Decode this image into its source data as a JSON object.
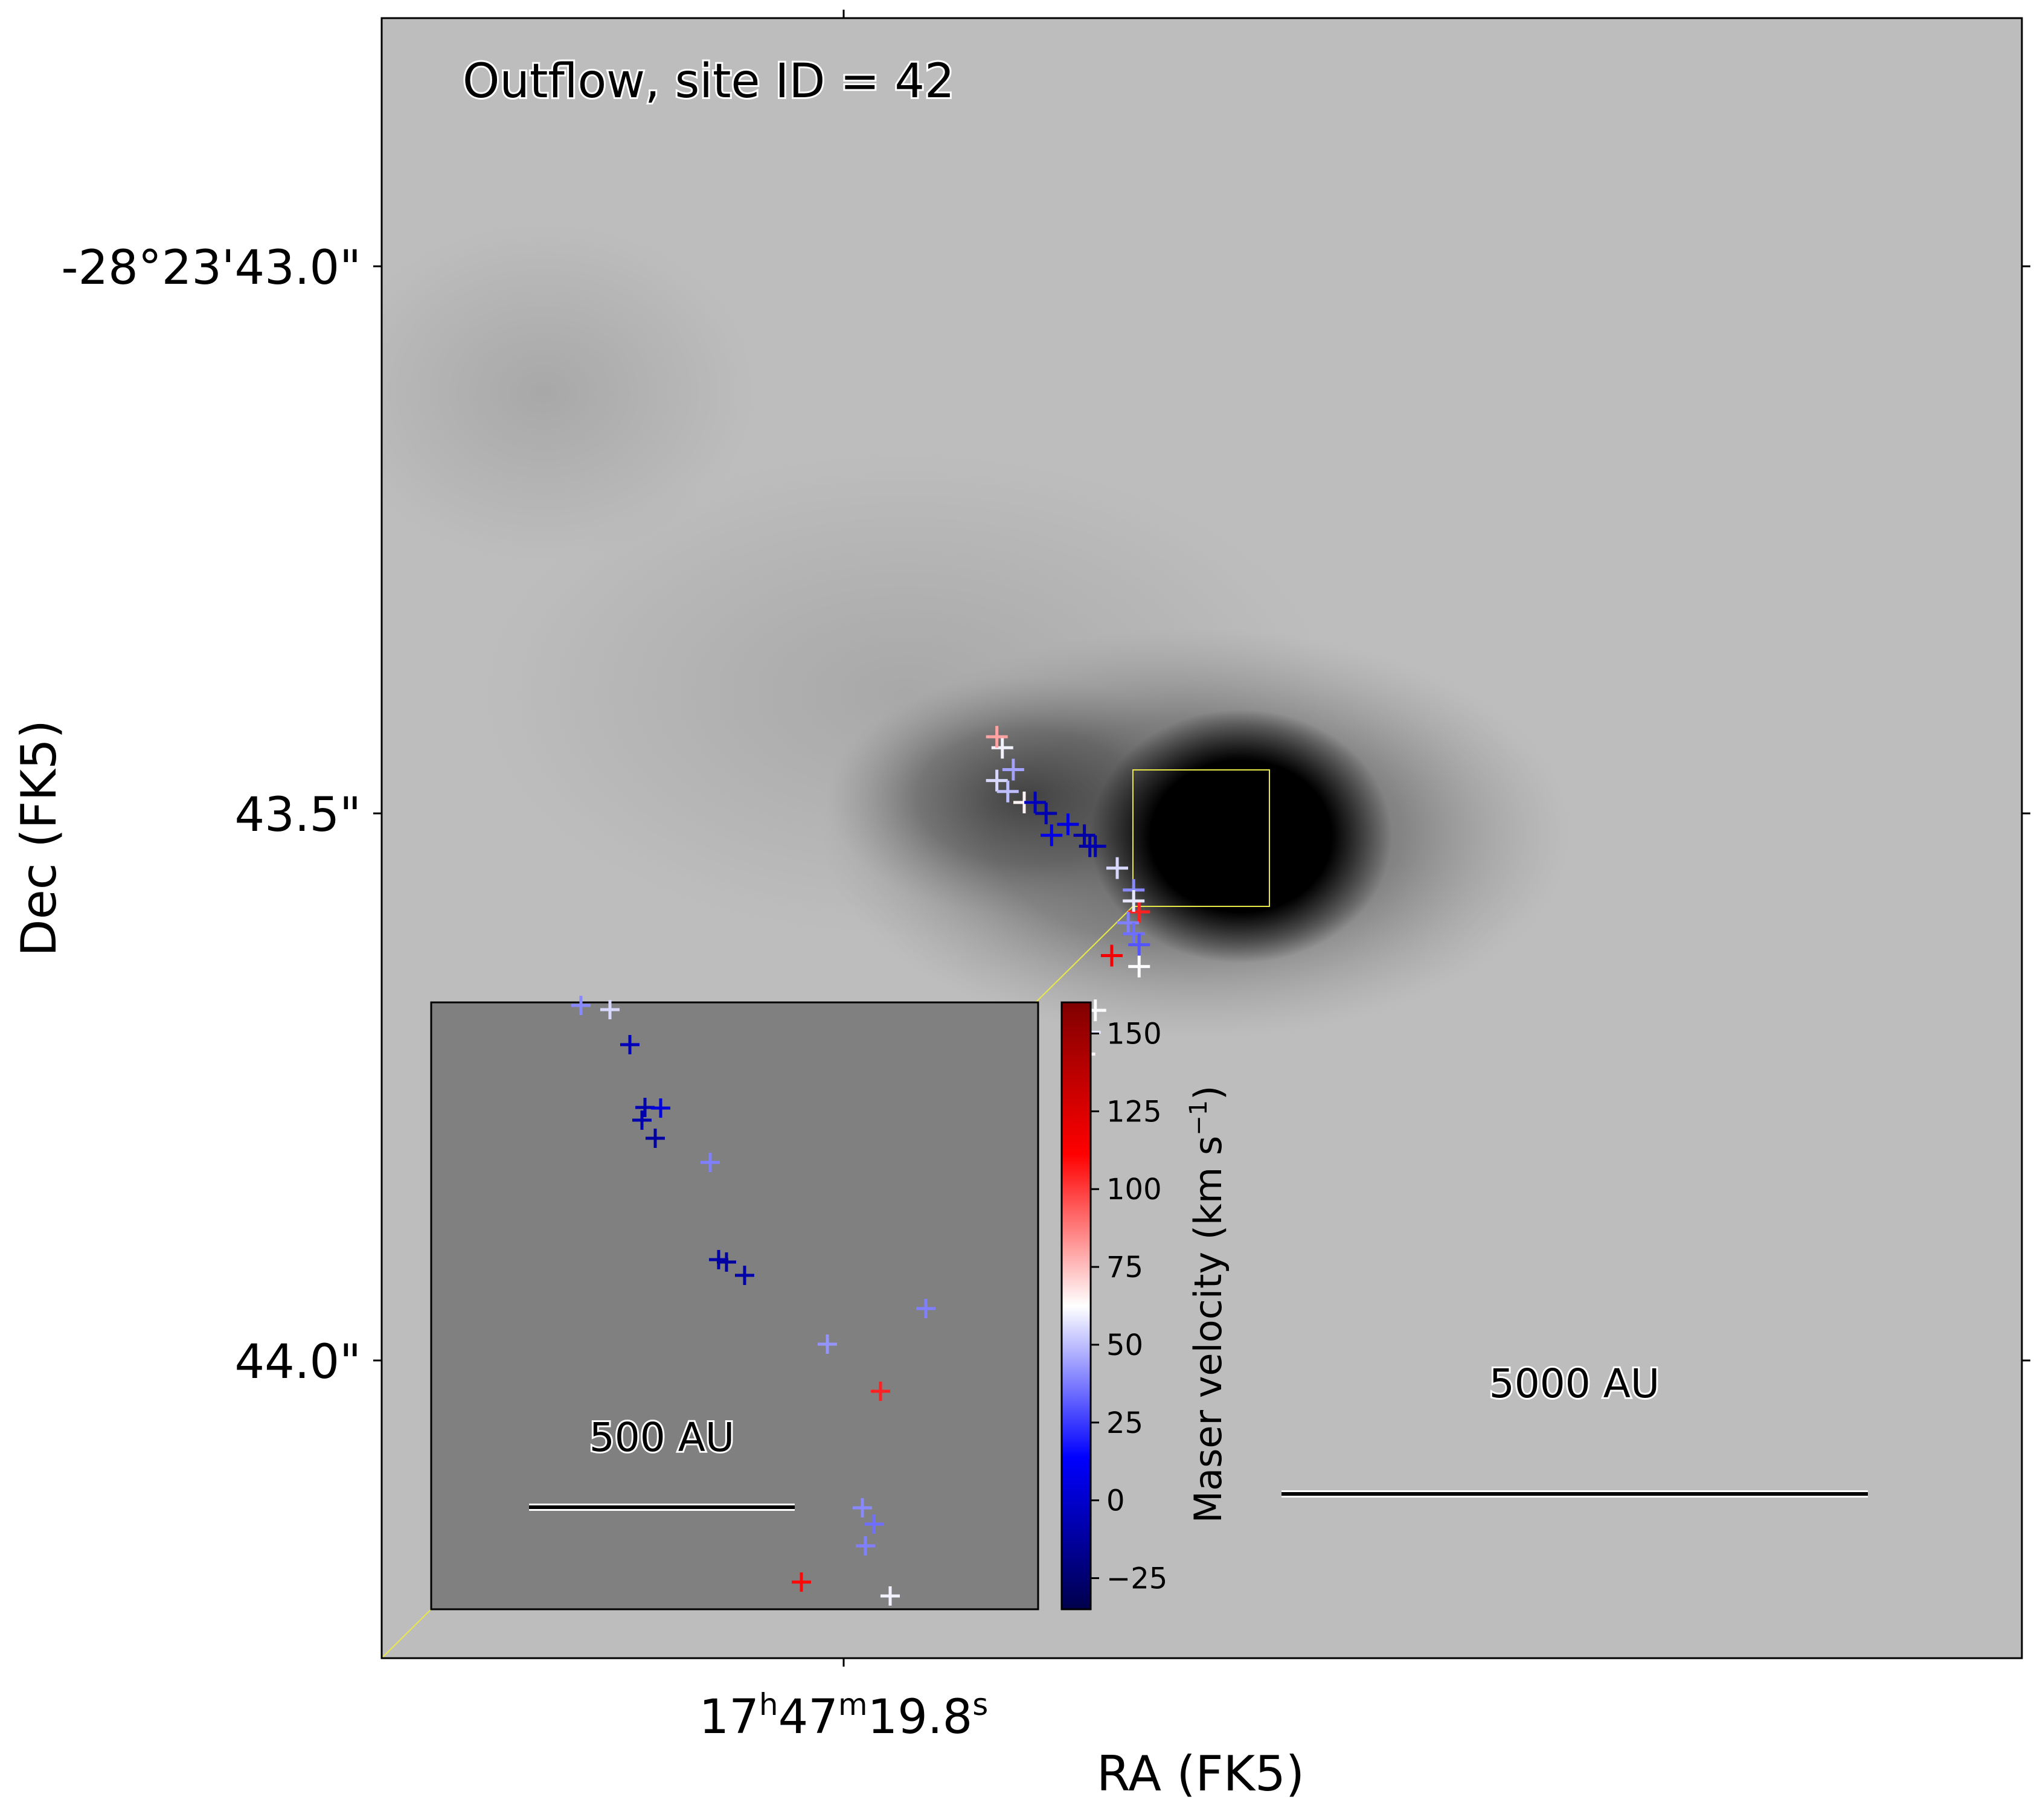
{
  "chart_data": {
    "type": "scatter",
    "title": "Outflow, site ID = 42",
    "xlabel": "RA (FK5)",
    "ylabel": "Dec (FK5)",
    "x_ticks": [
      {
        "label": "17h47m19.8s",
        "ra_sec": 19.8
      }
    ],
    "y_ticks": [
      {
        "label": "-28°23'43.0\"",
        "dec_arcsec_offset": 43.0
      },
      {
        "label": "43.5\"",
        "dec_arcsec_offset": 43.5
      },
      {
        "label": "44.0\"",
        "dec_arcsec_offset": 44.0
      }
    ],
    "grayscale_background": true,
    "colorbar": {
      "label": "Maser velocity (km s⁻¹)",
      "colormap": "seismic",
      "range": [
        -35,
        160
      ],
      "ticks": [
        -25,
        0,
        25,
        50,
        75,
        100,
        125,
        150
      ],
      "tick_labels": [
        "−25",
        "0",
        "25",
        "50",
        "75",
        "100",
        "125",
        "150"
      ]
    },
    "scalebar_main": "5000 AU",
    "inset": {
      "scalebar": "500 AU",
      "zoom_box_color": "#e8e84a",
      "background_color": "#808080"
    },
    "masers": [
      {
        "ra_off": -0.29,
        "dec_off": -0.44,
        "v": 60
      },
      {
        "ra_off": -0.28,
        "dec_off": -0.43,
        "v": 80
      },
      {
        "ra_off": -0.28,
        "dec_off": -0.47,
        "v": 55
      },
      {
        "ra_off": -0.31,
        "dec_off": -0.46,
        "v": 45
      },
      {
        "ra_off": -0.33,
        "dec_off": -0.49,
        "v": 65
      },
      {
        "ra_off": -0.3,
        "dec_off": -0.48,
        "v": 50
      },
      {
        "ra_off": -0.35,
        "dec_off": -0.49,
        "v": -5
      },
      {
        "ra_off": -0.37,
        "dec_off": -0.5,
        "v": -8
      },
      {
        "ra_off": -0.41,
        "dec_off": -0.51,
        "v": 5
      },
      {
        "ra_off": -0.38,
        "dec_off": -0.52,
        "v": 8
      },
      {
        "ra_off": -0.44,
        "dec_off": -0.52,
        "v": -10
      },
      {
        "ra_off": -0.45,
        "dec_off": -0.53,
        "v": -12
      },
      {
        "ra_off": -0.46,
        "dec_off": -0.53,
        "v": -8
      },
      {
        "ra_off": -0.5,
        "dec_off": -0.55,
        "v": 55
      },
      {
        "ra_off": -0.53,
        "dec_off": -0.57,
        "v": 40
      },
      {
        "ra_off": -0.54,
        "dec_off": -0.59,
        "v": 105
      },
      {
        "ra_off": -0.53,
        "dec_off": -0.58,
        "v": 58
      },
      {
        "ra_off": -0.52,
        "dec_off": -0.6,
        "v": 38
      },
      {
        "ra_off": -0.53,
        "dec_off": -0.61,
        "v": 35
      },
      {
        "ra_off": -0.54,
        "dec_off": -0.62,
        "v": 30
      },
      {
        "ra_off": -0.49,
        "dec_off": -0.63,
        "v": 115
      },
      {
        "ra_off": -0.54,
        "dec_off": -0.64,
        "v": 62
      },
      {
        "ra_off": -0.46,
        "dec_off": -0.68,
        "v": 62
      },
      {
        "ra_off": -0.45,
        "dec_off": -0.7,
        "v": 58
      },
      {
        "ra_off": -0.44,
        "dec_off": -0.72,
        "v": 64
      }
    ],
    "inset_masers": [
      {
        "v": 40
      },
      {
        "v": 55
      },
      {
        "v": -5
      },
      {
        "v": -8
      },
      {
        "v": 5
      },
      {
        "v": -8
      },
      {
        "v": -12
      },
      {
        "v": 38
      },
      {
        "v": -10
      },
      {
        "v": -12
      },
      {
        "v": -10
      },
      {
        "v": 38
      },
      {
        "v": 42
      },
      {
        "v": 105
      },
      {
        "v": 40
      },
      {
        "v": 35
      },
      {
        "v": 38
      },
      {
        "v": 110
      },
      {
        "v": 60
      }
    ]
  }
}
